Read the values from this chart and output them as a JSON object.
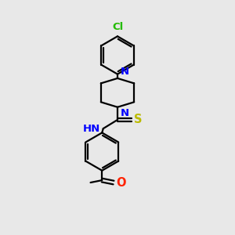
{
  "bg_color": "#e8e8e8",
  "atom_colors": {
    "N": "#0000ff",
    "O": "#ff2200",
    "S": "#bbbb00",
    "Cl": "#22bb00"
  },
  "line_color": "#000000",
  "line_width": 1.6,
  "font_size": 9.5
}
